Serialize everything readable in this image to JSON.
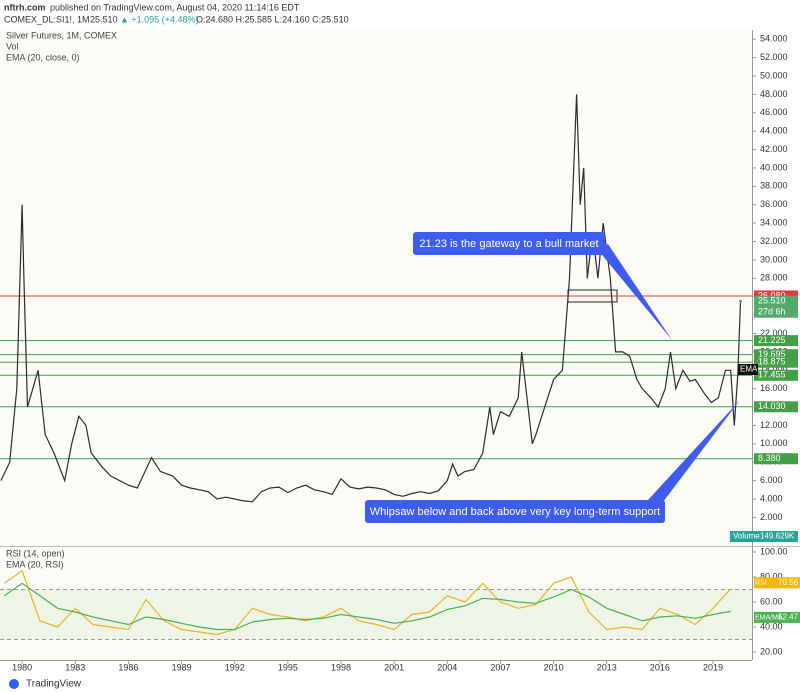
{
  "header": {
    "author": "nftrh.com",
    "published": "published on TradingView.com, August 04, 2020 11:14:16 EDT",
    "symbol": "COMEX_DL:SI1!, 1M",
    "price": "25.510",
    "change": "▲ +1.095 (+4.48%)",
    "ohlc": "O:24.680 H:25.585 L:24.160 C:25.510"
  },
  "footer": {
    "brand": "TradingView"
  },
  "chart_data": [
    {
      "type": "line",
      "legend": [
        "Silver Futures, 1M, COMEX",
        "Vol",
        "EMA (20, close, 0)"
      ],
      "x": [
        1978.8,
        1979.3,
        1979.7,
        1980.0,
        1980.1,
        1980.3,
        1980.6,
        1980.9,
        1981.3,
        1981.8,
        1982.4,
        1982.8,
        1983.2,
        1983.6,
        1983.9,
        1984.5,
        1985,
        1985.5,
        1986,
        1986.5,
        1987.3,
        1987.8,
        1988.5,
        1989,
        1989.5,
        1990,
        1990.5,
        1991,
        1991.5,
        1992,
        1992.5,
        1993,
        1993.5,
        1994,
        1994.5,
        1995,
        1995.5,
        1996,
        1996.5,
        1997,
        1997.5,
        1998,
        1998.5,
        1999,
        1999.5,
        2000,
        2000.5,
        2001,
        2001.5,
        2002,
        2002.5,
        2003,
        2003.5,
        2004,
        2004.3,
        2004.6,
        2005,
        2005.5,
        2006,
        2006.4,
        2006.6,
        2007,
        2007.5,
        2008,
        2008.2,
        2008.8,
        2009,
        2009.5,
        2010,
        2010.5,
        2010.9,
        2011.3,
        2011.5,
        2011.7,
        2011.9,
        2012.2,
        2012.5,
        2012.8,
        2013.2,
        2013.5,
        2013.9,
        2014.3,
        2014.7,
        2015,
        2015.5,
        2015.9,
        2016.3,
        2016.6,
        2016.9,
        2017.3,
        2017.7,
        2018,
        2018.5,
        2018.9,
        2019.3,
        2019.7,
        2020,
        2020.2,
        2020.4,
        2020.55
      ],
      "series": [
        {
          "name": "Silver Futures",
          "color": "#2b2b2b",
          "values": [
            6,
            8,
            16,
            36,
            28,
            14,
            16,
            18,
            11,
            9,
            6,
            10,
            13,
            12,
            9,
            7.5,
            6.5,
            6,
            5.5,
            5.2,
            8.5,
            7,
            6.5,
            5.5,
            5.2,
            5,
            4.8,
            4,
            4.2,
            4,
            3.8,
            3.7,
            4.8,
            5.2,
            5.3,
            4.7,
            5.2,
            5.5,
            5,
            4.8,
            4.5,
            6.2,
            5.3,
            5.1,
            5.3,
            5.2,
            5,
            4.5,
            4.3,
            4.6,
            4.8,
            4.6,
            4.9,
            6,
            7.8,
            6.5,
            7,
            7.2,
            9,
            14,
            11,
            13.5,
            13,
            15,
            20,
            10,
            11,
            14,
            17,
            18,
            28,
            48,
            36,
            40,
            28,
            33,
            28,
            34,
            28,
            20,
            20,
            19.5,
            17,
            16,
            15,
            14,
            16,
            20,
            16,
            18,
            16.8,
            17,
            15.5,
            14.5,
            15,
            18,
            18,
            12,
            17.5,
            25.51
          ]
        }
      ],
      "xlim": [
        1978.75,
        2021.2
      ],
      "xticks": [
        1980,
        1983,
        1986,
        1989,
        1992,
        1995,
        1998,
        2001,
        2004,
        2007,
        2010,
        2013,
        2016,
        2019
      ],
      "ylim": [
        -1,
        55
      ],
      "yticks": [
        {
          "value": 2,
          "label": "2.000"
        },
        {
          "value": 4,
          "label": "4.000"
        },
        {
          "value": 6,
          "label": "6.000"
        },
        {
          "value": 8,
          "label": "8.000"
        },
        {
          "value": 10,
          "label": "10.000"
        },
        {
          "value": 12,
          "label": "12.000"
        },
        {
          "value": 14,
          "label": "14.000"
        },
        {
          "value": 16,
          "label": "16.000"
        },
        {
          "value": 18,
          "label": "18.000"
        },
        {
          "value": 20,
          "label": "20.000"
        },
        {
          "value": 22,
          "label": "22.000"
        },
        {
          "value": 24,
          "label": "24.000"
        },
        {
          "value": 26,
          "label": "26.000"
        },
        {
          "value": 28,
          "label": "28.000"
        },
        {
          "value": 30,
          "label": "30.000"
        },
        {
          "value": 32,
          "label": "32.000"
        },
        {
          "value": 34,
          "label": "34.000"
        },
        {
          "value": 36,
          "label": "36.000"
        },
        {
          "value": 38,
          "label": "38.000"
        },
        {
          "value": 40,
          "label": "40.000"
        },
        {
          "value": 42,
          "label": "42.000"
        },
        {
          "value": 44,
          "label": "44.000"
        },
        {
          "value": 46,
          "label": "46.000"
        },
        {
          "value": 48,
          "label": "48.000"
        },
        {
          "value": 50,
          "label": "50.000"
        },
        {
          "value": 52,
          "label": "52.000"
        },
        {
          "value": 54,
          "label": "54.000"
        }
      ],
      "levels": [
        {
          "value": 26.08,
          "label": "26.080",
          "color": "#e53935"
        },
        {
          "value": 21.225,
          "label": "21.225",
          "color": "#43a047"
        },
        {
          "value": 19.695,
          "label": "19.695",
          "color": "#43a047"
        },
        {
          "value": 18.875,
          "label": "18.875",
          "color": "#43a047"
        },
        {
          "value": 17.455,
          "label": "17.455",
          "color": "#43a047"
        },
        {
          "value": 14.03,
          "label": "14.030",
          "color": "#43a047"
        },
        {
          "value": 8.38,
          "label": "8.380",
          "color": "#43a047"
        }
      ],
      "last_price": {
        "value": 25.51,
        "label": "25.510",
        "countdown": "27d 6h"
      },
      "ema_label": "EMA",
      "volume": {
        "name": "Volume",
        "label": "149.629K"
      },
      "annotations": [
        "21.23 is the gateway to a bull market",
        "Whipsaw below and back above very key long-term support"
      ]
    },
    {
      "type": "line",
      "legend": [
        "RSI (14, open)",
        "EMA (20, RSI)"
      ],
      "x": [
        1979,
        1980,
        1981,
        1982,
        1983,
        1984,
        1985,
        1986,
        1987,
        1988,
        1989,
        1990,
        1991,
        1992,
        1993,
        1994,
        1995,
        1996,
        1997,
        1998,
        1999,
        2000,
        2001,
        2002,
        2003,
        2004,
        2005,
        2006,
        2007,
        2008,
        2009,
        2010,
        2011,
        2012,
        2013,
        2014,
        2015,
        2016,
        2017,
        2018,
        2019,
        2020
      ],
      "series": [
        {
          "name": "RSI",
          "color": "#e6b422",
          "value_label": "70.56",
          "values": [
            75,
            85,
            45,
            40,
            55,
            42,
            40,
            38,
            62,
            45,
            38,
            36,
            34,
            38,
            55,
            50,
            48,
            45,
            48,
            55,
            45,
            42,
            38,
            50,
            52,
            65,
            60,
            75,
            60,
            55,
            58,
            75,
            80,
            52,
            38,
            40,
            38,
            55,
            50,
            42,
            55,
            70.56
          ]
        },
        {
          "name": "EMA/MA",
          "color": "#4caf50",
          "value_label": "52.47",
          "values": [
            65,
            75,
            65,
            55,
            52,
            48,
            45,
            42,
            48,
            46,
            43,
            40,
            38,
            38,
            44,
            46,
            47,
            46,
            47,
            50,
            48,
            46,
            43,
            45,
            48,
            54,
            57,
            63,
            62,
            60,
            59,
            64,
            70,
            64,
            55,
            50,
            45,
            48,
            49,
            47,
            50,
            52.47
          ]
        }
      ],
      "xlim": [
        1978.75,
        2021.2
      ],
      "ylim": [
        13.6,
        103.2
      ],
      "yticks": [
        {
          "value": 20,
          "label": "20.00"
        },
        {
          "value": 40,
          "label": "40.00"
        },
        {
          "value": 60,
          "label": "60.00"
        },
        {
          "value": 80,
          "label": "80.00"
        },
        {
          "value": 100,
          "label": "100.00"
        }
      ],
      "bands": [
        30,
        70
      ]
    }
  ]
}
